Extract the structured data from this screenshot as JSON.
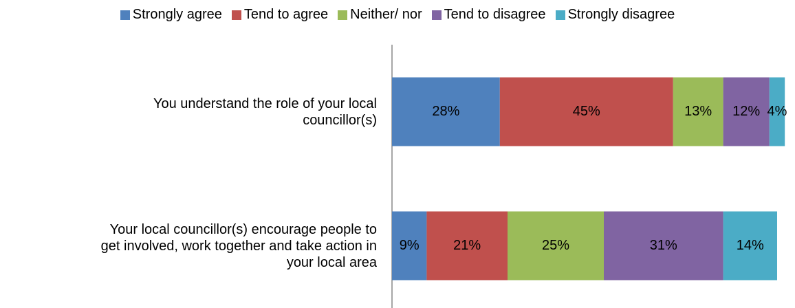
{
  "chart_data": {
    "type": "stacked-barh",
    "categories": [
      "You understand the role of your local\ncouncillor(s)",
      "Your local councillor(s) encourage people to\nget involved, work together and take action in\nyour local area"
    ],
    "series": [
      {
        "name": "Strongly agree",
        "color": "#4f81bd",
        "values": [
          28,
          9
        ],
        "value_labels": [
          "28%",
          "9%"
        ]
      },
      {
        "name": "Tend to agree",
        "color": "#c0504d",
        "values": [
          45,
          21
        ],
        "value_labels": [
          "45%",
          "21%"
        ]
      },
      {
        "name": "Neither/ nor",
        "color": "#9bbb59",
        "values": [
          13,
          25
        ],
        "value_labels": [
          "13%",
          "25%"
        ]
      },
      {
        "name": "Tend to disagree",
        "color": "#8064a2",
        "values": [
          12,
          31
        ],
        "value_labels": [
          "12%",
          "31%"
        ]
      },
      {
        "name": "Strongly disagree",
        "color": "#4bacc6",
        "values": [
          4,
          14
        ],
        "value_labels": [
          "4%",
          "14%"
        ]
      }
    ],
    "xlim": [
      0,
      100
    ],
    "legend": "top"
  }
}
